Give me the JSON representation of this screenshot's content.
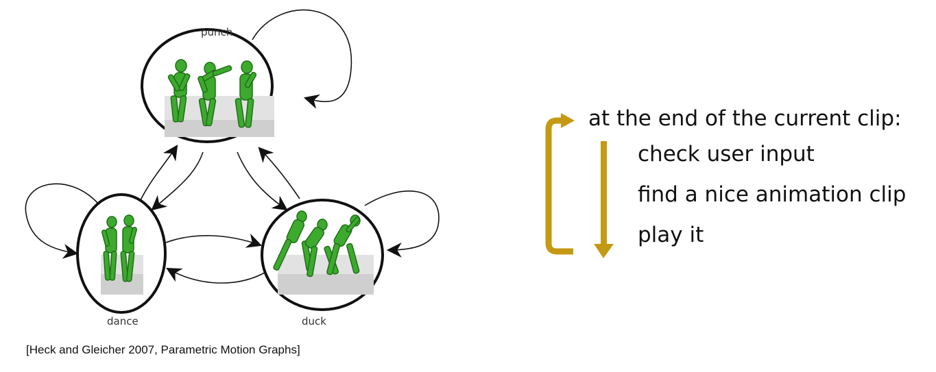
{
  "nodes": {
    "punch": {
      "label": "punch"
    },
    "dance": {
      "label": "dance"
    },
    "duck": {
      "label": "duck"
    }
  },
  "citation": "[Heck and Gleicher 2007, Parametric Motion Graphs]",
  "algorithm": {
    "header": "at the end of the current clip:",
    "steps": [
      "check user input",
      "find a nice animation clip",
      "play it"
    ]
  },
  "colors": {
    "loop_arrow": "#c49a14",
    "figure_green": "#3daa2e",
    "figure_outline": "#1f6e17",
    "node_outline": "#111111",
    "edge": "#111111"
  }
}
